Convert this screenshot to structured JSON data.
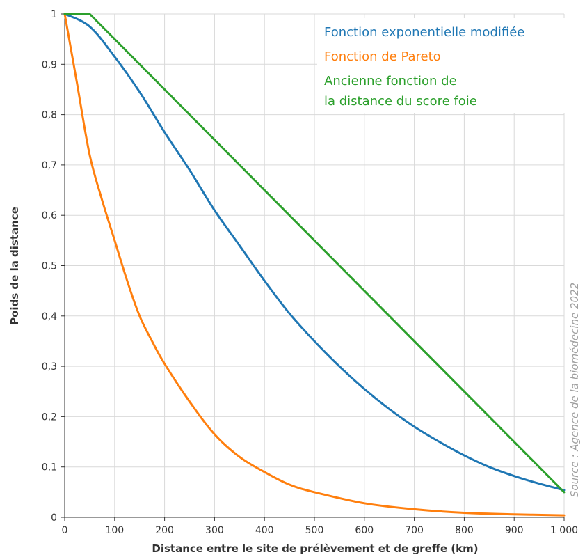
{
  "chart_data": {
    "type": "line",
    "xlabel": "Distance entre le site de prélèvement et de greffe (km)",
    "ylabel": "Poids de la distance",
    "xlim": [
      0,
      1000
    ],
    "ylim": [
      0,
      1
    ],
    "x_ticks": [
      "0",
      "100",
      "200",
      "300",
      "400",
      "500",
      "600",
      "700",
      "800",
      "900",
      "1 000"
    ],
    "y_ticks": [
      "0",
      "0,1",
      "0,2",
      "0,3",
      "0,4",
      "0,5",
      "0,6",
      "0,7",
      "0,8",
      "0,9",
      "1"
    ],
    "grid": true,
    "legend_position": "top-right",
    "source": "Source : Agence de la biomédecine 2022",
    "series": [
      {
        "name": "Fonction exponentielle modifiée",
        "color": "#1f77b4",
        "x": [
          0,
          50,
          100,
          150,
          200,
          250,
          300,
          350,
          400,
          450,
          500,
          550,
          600,
          650,
          700,
          750,
          800,
          850,
          900,
          950,
          1000
        ],
        "y": [
          1.0,
          0.975,
          0.915,
          0.845,
          0.765,
          0.69,
          0.61,
          0.54,
          0.47,
          0.405,
          0.35,
          0.3,
          0.255,
          0.215,
          0.18,
          0.15,
          0.123,
          0.1,
          0.082,
          0.067,
          0.054
        ]
      },
      {
        "name": "Fonction de Pareto",
        "color": "#ff7f0e",
        "x": [
          0,
          25,
          50,
          75,
          100,
          125,
          150,
          175,
          200,
          250,
          300,
          350,
          400,
          450,
          500,
          600,
          700,
          800,
          900,
          1000
        ],
        "y": [
          1.0,
          0.86,
          0.72,
          0.63,
          0.55,
          0.47,
          0.4,
          0.35,
          0.305,
          0.23,
          0.165,
          0.12,
          0.09,
          0.065,
          0.05,
          0.028,
          0.016,
          0.009,
          0.006,
          0.004
        ]
      },
      {
        "name": "Ancienne fonction de la distance du score foie",
        "name_lines": [
          "Ancienne fonction de",
          "la distance du score foie"
        ],
        "color": "#2ca02c",
        "x": [
          0,
          50,
          1000
        ],
        "y": [
          1.0,
          1.0,
          0.05
        ]
      }
    ]
  }
}
